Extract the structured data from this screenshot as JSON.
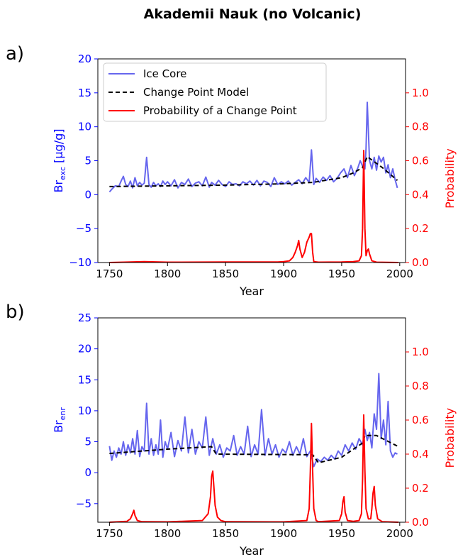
{
  "figure": {
    "title": "Akademii Nauk (no Volcanic)",
    "colors": {
      "ice_core": "#6666ee",
      "model": "#000000",
      "probability": "#ff0000",
      "left_axis": "#0000ff",
      "right_axis": "#ff0000"
    }
  },
  "legend": {
    "ice_core": "Ice Core",
    "model": "Change Point Model",
    "probability": "Probability of a Change Point"
  },
  "chart_data": [
    {
      "type": "line",
      "panel_label": "a)",
      "xlabel": "Year",
      "ylabel_main": "Br",
      "ylabel_sub": "exc",
      "ylabel_suffix": " [µg/g]",
      "y2label": "Probability",
      "xlim": [
        1740,
        2005
      ],
      "ylim": [
        -10,
        20
      ],
      "y2lim": [
        0,
        1.2
      ],
      "xticks": [
        1750,
        1800,
        1850,
        1900,
        1950,
        2000
      ],
      "yticks": [
        -10,
        -5,
        0,
        5,
        10,
        15,
        20
      ],
      "y2ticks": [
        0.0,
        0.2,
        0.4,
        0.6,
        0.8,
        1.0
      ],
      "legend_position": "top-left",
      "series": [
        {
          "name": "Ice Core",
          "x": [
            1750,
            1752,
            1755,
            1758,
            1760,
            1762,
            1764,
            1766,
            1768,
            1770,
            1772,
            1774,
            1776,
            1778,
            1780,
            1782,
            1784,
            1786,
            1788,
            1790,
            1792,
            1794,
            1796,
            1798,
            1800,
            1803,
            1806,
            1809,
            1812,
            1815,
            1818,
            1821,
            1824,
            1827,
            1830,
            1833,
            1836,
            1838,
            1841,
            1844,
            1847,
            1850,
            1853,
            1856,
            1859,
            1862,
            1865,
            1868,
            1871,
            1874,
            1877,
            1880,
            1883,
            1886,
            1889,
            1892,
            1895,
            1898,
            1901,
            1904,
            1907,
            1910,
            1913,
            1916,
            1919,
            1922,
            1924,
            1926,
            1928,
            1931,
            1934,
            1937,
            1940,
            1943,
            1946,
            1949,
            1952,
            1955,
            1958,
            1961,
            1964,
            1966,
            1968,
            1970,
            1971,
            1972,
            1974,
            1976,
            1978,
            1980,
            1982,
            1984,
            1986,
            1988,
            1990,
            1992,
            1994,
            1996,
            1998
          ],
          "y": [
            0.4,
            0.8,
            1.3,
            1.2,
            2.0,
            2.7,
            1.5,
            1.2,
            2.0,
            1.0,
            2.5,
            1.3,
            1.8,
            1.4,
            1.7,
            5.5,
            1.5,
            1.1,
            1.8,
            1.3,
            1.6,
            1.2,
            2.0,
            1.5,
            1.9,
            1.3,
            2.2,
            1.0,
            1.8,
            1.5,
            2.3,
            1.2,
            1.7,
            1.9,
            1.3,
            2.6,
            1.1,
            1.8,
            1.4,
            2.1,
            1.5,
            1.2,
            1.9,
            1.5,
            1.6,
            1.3,
            1.9,
            1.6,
            2.0,
            1.4,
            2.1,
            1.3,
            2.0,
            1.8,
            1.2,
            2.5,
            1.5,
            1.9,
            1.6,
            2.0,
            1.4,
            1.8,
            2.2,
            1.6,
            2.5,
            1.8,
            6.6,
            1.5,
            2.4,
            1.8,
            2.6,
            2.1,
            2.8,
            1.9,
            2.4,
            3.2,
            3.8,
            2.5,
            4.3,
            2.8,
            4.0,
            5.0,
            4.2,
            3.8,
            6.8,
            13.6,
            5.0,
            3.8,
            5.5,
            3.6,
            5.7,
            4.8,
            5.5,
            3.2,
            4.4,
            2.5,
            3.8,
            2.2,
            1.0
          ]
        },
        {
          "name": "Change Point Model",
          "x": [
            1750,
            1800,
            1850,
            1900,
            1925,
            1950,
            1960,
            1968,
            1972,
            1985,
            1998
          ],
          "y": [
            1.2,
            1.3,
            1.4,
            1.6,
            1.8,
            2.5,
            3.2,
            4.0,
            5.6,
            4.0,
            2.1
          ]
        },
        {
          "name": "Probability of a Change Point",
          "axis": "right",
          "x": [
            1750,
            1780,
            1800,
            1850,
            1895,
            1900,
            1905,
            1908,
            1910,
            1912,
            1913,
            1914,
            1916,
            1918,
            1920,
            1922,
            1923,
            1924,
            1925,
            1926,
            1930,
            1950,
            1960,
            1965,
            1967,
            1968,
            1969,
            1970,
            1971,
            1972,
            1973,
            1974,
            1976,
            1980,
            1999
          ],
          "y": [
            0.0,
            0.005,
            0.002,
            0.003,
            0.003,
            0.005,
            0.01,
            0.03,
            0.06,
            0.1,
            0.13,
            0.08,
            0.03,
            0.06,
            0.12,
            0.15,
            0.17,
            0.17,
            0.06,
            0.005,
            0.002,
            0.003,
            0.005,
            0.01,
            0.04,
            0.2,
            0.66,
            0.2,
            0.04,
            0.07,
            0.08,
            0.05,
            0.01,
            0.002,
            0.0
          ]
        }
      ]
    },
    {
      "type": "line",
      "panel_label": "b)",
      "xlabel": "Year",
      "ylabel_main": "Br",
      "ylabel_sub": "enr",
      "ylabel_suffix": "",
      "y2label": "Probability",
      "xlim": [
        1740,
        2005
      ],
      "ylim": [
        -8,
        25
      ],
      "y2lim": [
        0,
        1.2
      ],
      "xticks": [
        1750,
        1800,
        1850,
        1900,
        1950,
        2000
      ],
      "yticks": [
        -5,
        0,
        5,
        10,
        15,
        20,
        25
      ],
      "y2ticks": [
        0.0,
        0.2,
        0.4,
        0.6,
        0.8,
        1.0
      ],
      "series": [
        {
          "name": "Ice Core",
          "x": [
            1750,
            1752,
            1754,
            1756,
            1758,
            1760,
            1762,
            1764,
            1766,
            1768,
            1770,
            1772,
            1774,
            1776,
            1778,
            1780,
            1782,
            1784,
            1786,
            1788,
            1790,
            1792,
            1794,
            1796,
            1798,
            1800,
            1803,
            1806,
            1809,
            1812,
            1815,
            1818,
            1821,
            1824,
            1827,
            1830,
            1833,
            1836,
            1839,
            1842,
            1845,
            1848,
            1851,
            1854,
            1857,
            1860,
            1863,
            1866,
            1869,
            1872,
            1875,
            1878,
            1881,
            1884,
            1887,
            1890,
            1893,
            1896,
            1899,
            1902,
            1905,
            1908,
            1911,
            1914,
            1917,
            1920,
            1923,
            1926,
            1929,
            1932,
            1935,
            1938,
            1941,
            1944,
            1947,
            1950,
            1953,
            1956,
            1959,
            1962,
            1965,
            1968,
            1970,
            1972,
            1974,
            1976,
            1978,
            1980,
            1982,
            1984,
            1986,
            1988,
            1990,
            1992,
            1994,
            1996,
            1998
          ],
          "y": [
            4.3,
            2.0,
            3.5,
            2.5,
            4.0,
            3.0,
            5.0,
            2.8,
            4.5,
            3.2,
            5.5,
            3.0,
            6.8,
            2.6,
            4.2,
            3.5,
            11.2,
            3.0,
            5.5,
            2.8,
            4.5,
            3.0,
            8.5,
            2.5,
            5.0,
            3.8,
            6.5,
            2.6,
            5.2,
            3.5,
            9.0,
            3.2,
            7.0,
            3.0,
            5.0,
            4.0,
            9.0,
            2.8,
            5.5,
            3.0,
            4.5,
            2.5,
            4.0,
            3.5,
            6.0,
            2.8,
            4.2,
            3.0,
            7.5,
            2.6,
            4.5,
            3.0,
            10.2,
            2.8,
            5.5,
            3.0,
            4.5,
            2.5,
            3.8,
            3.2,
            5.0,
            2.8,
            4.2,
            3.0,
            5.5,
            2.6,
            3.5,
            1.0,
            2.2,
            1.8,
            2.5,
            2.0,
            2.8,
            2.2,
            3.5,
            2.8,
            4.5,
            3.5,
            4.8,
            3.8,
            5.5,
            4.5,
            7.0,
            5.2,
            6.5,
            4.0,
            9.5,
            7.0,
            16.0,
            5.5,
            8.5,
            4.5,
            11.5,
            3.5,
            2.5,
            3.2,
            3.0
          ]
        },
        {
          "name": "Change Point Model",
          "x": [
            1750,
            1800,
            1838,
            1842,
            1925,
            1930,
            1950,
            1968,
            1970,
            1980,
            1998
          ],
          "y": [
            3.1,
            3.8,
            4.2,
            3.0,
            2.9,
            1.6,
            2.5,
            4.8,
            6.0,
            6.0,
            4.3
          ]
        },
        {
          "name": "Probability of a Change Point",
          "axis": "right",
          "x": [
            1750,
            1765,
            1768,
            1770,
            1771,
            1772,
            1774,
            1778,
            1800,
            1830,
            1835,
            1837,
            1838,
            1839,
            1840,
            1841,
            1843,
            1846,
            1850,
            1900,
            1920,
            1922,
            1923,
            1924,
            1925,
            1926,
            1928,
            1930,
            1948,
            1950,
            1951,
            1952,
            1953,
            1955,
            1960,
            1965,
            1967,
            1968,
            1969,
            1970,
            1971,
            1973,
            1975,
            1976,
            1977,
            1978,
            1979,
            1981,
            1985,
            1999
          ],
          "y": [
            0.0,
            0.005,
            0.02,
            0.05,
            0.07,
            0.04,
            0.01,
            0.003,
            0.002,
            0.01,
            0.05,
            0.15,
            0.27,
            0.3,
            0.2,
            0.1,
            0.03,
            0.01,
            0.003,
            0.002,
            0.01,
            0.08,
            0.3,
            0.58,
            0.3,
            0.08,
            0.01,
            0.003,
            0.01,
            0.05,
            0.12,
            0.15,
            0.06,
            0.01,
            0.005,
            0.01,
            0.05,
            0.25,
            0.63,
            0.3,
            0.08,
            0.02,
            0.02,
            0.08,
            0.17,
            0.21,
            0.1,
            0.02,
            0.003,
            0.0
          ]
        }
      ]
    }
  ]
}
